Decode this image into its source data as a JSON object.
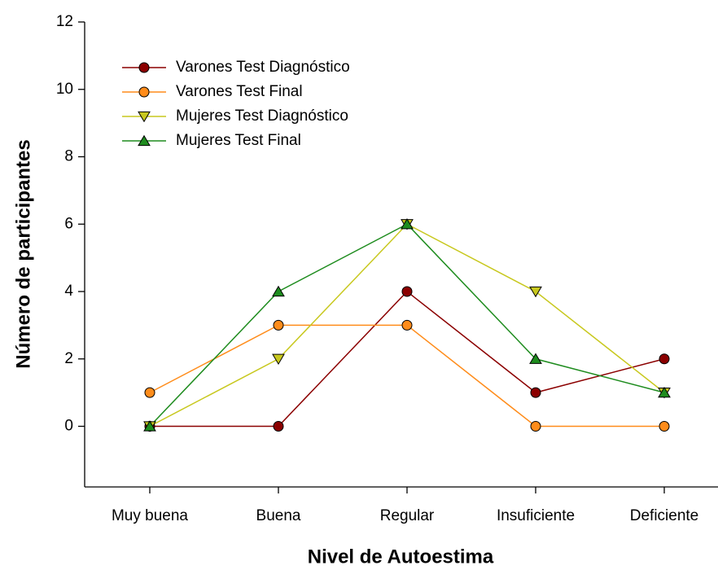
{
  "chart_data": {
    "type": "line",
    "x_label": "Nivel de Autoestima",
    "y_label": "Número de participantes",
    "categories": [
      "Muy buena",
      "Buena",
      "Regular",
      "Insuficiente",
      "Deficiente"
    ],
    "series": [
      {
        "name": "Varones Test Diagnóstico",
        "color": "#8b0000",
        "marker": "circle",
        "values": [
          0,
          0,
          4,
          1,
          2
        ]
      },
      {
        "name": "Varones Test Final",
        "color": "#ff8c1a",
        "marker": "circle",
        "values": [
          1,
          3,
          3,
          0,
          0
        ]
      },
      {
        "name": "Mujeres Test Diagnóstico",
        "color": "#c8c81e",
        "marker": "triangle-down",
        "values": [
          0,
          2,
          6,
          4,
          1
        ]
      },
      {
        "name": "Mujeres Test Final",
        "color": "#1e8c1e",
        "marker": "triangle-up",
        "values": [
          0,
          4,
          6,
          2,
          1
        ]
      }
    ],
    "ylim": [
      -1.8,
      12
    ],
    "yticks": [
      0,
      2,
      4,
      6,
      8,
      10,
      12
    ],
    "legend": "upper left"
  }
}
